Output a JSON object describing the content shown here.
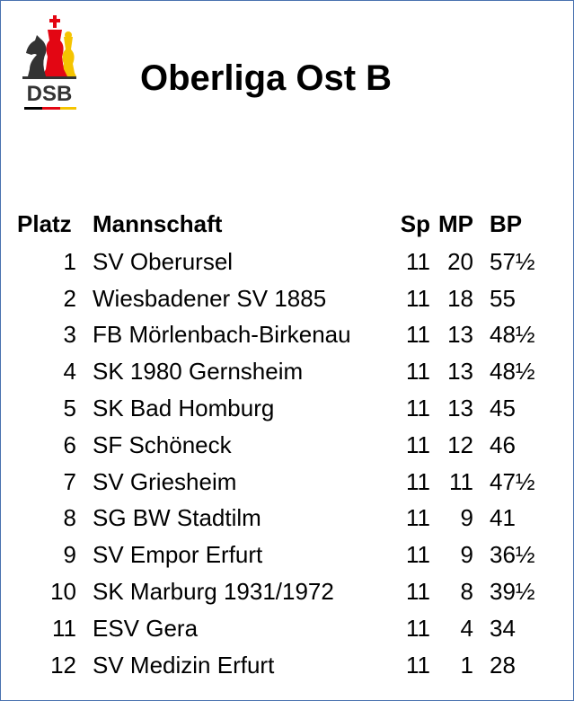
{
  "header": {
    "logo_text": "DSB",
    "title": "Oberliga Ost B"
  },
  "colors": {
    "border": "#4a72b0",
    "logo_red": "#e30613",
    "logo_gold": "#f5c400",
    "logo_dark": "#333333"
  },
  "table": {
    "columns": {
      "platz": "Platz",
      "mannschaft": "Mannschaft",
      "sp": "Sp",
      "mp": "MP",
      "bp": "BP"
    },
    "rows": [
      {
        "platz": "1",
        "mannschaft": "SV Oberursel",
        "sp": "11",
        "mp": "20",
        "bp": "57½"
      },
      {
        "platz": "2",
        "mannschaft": "Wiesbadener SV 1885",
        "sp": "11",
        "mp": "18",
        "bp": "55"
      },
      {
        "platz": "3",
        "mannschaft": "FB Mörlenbach-Birkenau",
        "sp": "11",
        "mp": "13",
        "bp": "48½"
      },
      {
        "platz": "4",
        "mannschaft": "SK 1980 Gernsheim",
        "sp": "11",
        "mp": "13",
        "bp": "48½"
      },
      {
        "platz": "5",
        "mannschaft": "SK Bad Homburg",
        "sp": "11",
        "mp": "13",
        "bp": "45"
      },
      {
        "platz": "6",
        "mannschaft": "SF Schöneck",
        "sp": "11",
        "mp": "12",
        "bp": "46"
      },
      {
        "platz": "7",
        "mannschaft": "SV Griesheim",
        "sp": "11",
        "mp": "11",
        "bp": "47½"
      },
      {
        "platz": "8",
        "mannschaft": "SG BW Stadtilm",
        "sp": "11",
        "mp": "9",
        "bp": "41"
      },
      {
        "platz": "9",
        "mannschaft": "SV Empor Erfurt",
        "sp": "11",
        "mp": "9",
        "bp": "36½"
      },
      {
        "platz": "10",
        "mannschaft": "SK Marburg 1931/1972",
        "sp": "11",
        "mp": "8",
        "bp": "39½"
      },
      {
        "platz": "11",
        "mannschaft": "ESV Gera",
        "sp": "11",
        "mp": "4",
        "bp": "34"
      },
      {
        "platz": "12",
        "mannschaft": "SV Medizin Erfurt",
        "sp": "11",
        "mp": "1",
        "bp": "28"
      }
    ]
  }
}
